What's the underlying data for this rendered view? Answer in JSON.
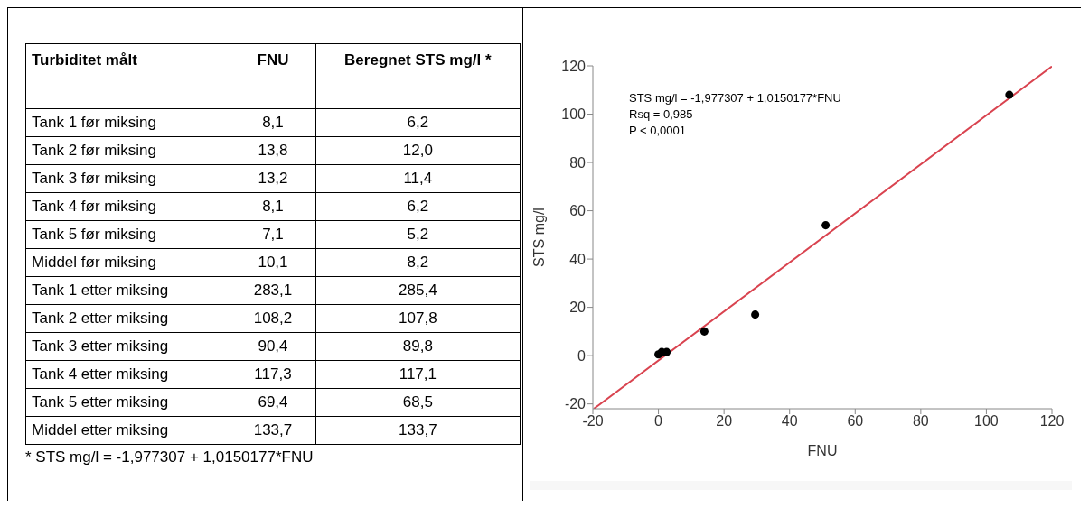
{
  "chart_data": [
    {
      "type": "other",
      "annotations": [
        "Turbiditet målt",
        "FNU",
        "Beregnet STS mg/l *",
        "Tank 1 før miksing",
        "8,1",
        "6,2",
        "Tank 2 før miksing",
        "13,8",
        "12,0",
        "Tank 3 før miksing",
        "13,2",
        "11,4",
        "Tank 4 før miksing",
        "8,1",
        "6,2",
        "Tank 5 før miksing",
        "7,1",
        "5,2",
        "Middel før miksing",
        "10,1",
        "8,2",
        "Tank 1 etter miksing",
        "283,1",
        "285,4",
        "Tank 2 etter miksing",
        "108,2",
        "107,8",
        "Tank 3 etter miksing",
        "90,4",
        "89,8",
        "Tank 4 etter miksing",
        "117,3",
        "117,1",
        "Tank 5 etter miksing",
        "69,4",
        "68,5",
        "Middel etter miksing",
        "133,7",
        "133,7",
        "* STS mg/l = -1,977307 + 1,0150177*FNU"
      ]
    },
    {
      "type": "scatter",
      "xlabel": "FNU",
      "ylabel": "STS mg/l",
      "xlim": [
        -20,
        120
      ],
      "ylim": [
        -22,
        120
      ],
      "xticks": [
        -20,
        0,
        20,
        40,
        60,
        80,
        100,
        120
      ],
      "yticks": [
        -20,
        0,
        20,
        40,
        60,
        80,
        100,
        120
      ],
      "grid": false,
      "annotations": [
        "STS mg/l = -1,977307 + 1,0150177*FNU",
        "Rsq = 0,985",
        "P < 0,0001"
      ],
      "series": [
        {
          "type": "scatter",
          "color": "#000000",
          "marker": "circle",
          "x": [
            0,
            1,
            2.5,
            14,
            29.5,
            51,
            107
          ],
          "values": [
            0.5,
            1.5,
            1.5,
            10,
            17,
            54,
            108
          ]
        },
        {
          "type": "line",
          "color": "#d9434f",
          "marker": "none",
          "x": [
            -19.7,
            120
          ],
          "values": [
            -22,
            119.8
          ]
        }
      ]
    }
  ]
}
